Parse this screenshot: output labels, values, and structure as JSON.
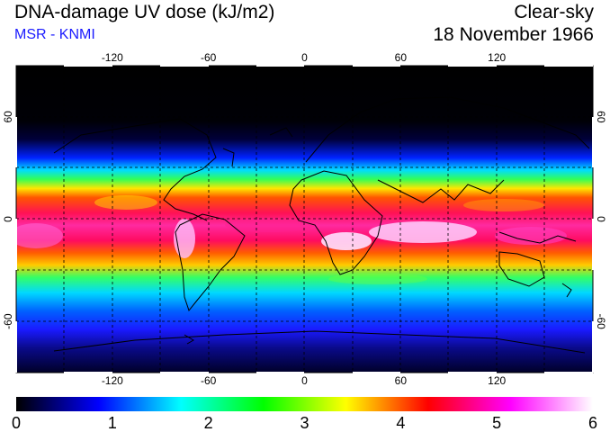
{
  "header": {
    "title": "DNA-damage UV dose (kJ/m2)",
    "source": "MSR - KNMI",
    "condition": "Clear-sky",
    "date": "18 November 1966"
  },
  "map": {
    "lon_ticks": [
      "-120",
      "-60",
      "0",
      "60",
      "120"
    ],
    "lat_ticks": [
      "60",
      "0",
      "-60"
    ],
    "lon_values": [
      -120,
      -60,
      0,
      60,
      120
    ],
    "lat_values": [
      60,
      0,
      -60
    ],
    "lon_range": [
      -180,
      180
    ],
    "lat_range": [
      -90,
      90
    ],
    "grid": true
  },
  "colorbar": {
    "min": 0,
    "max": 6,
    "labels": [
      "0",
      "1",
      "2",
      "3",
      "4",
      "5",
      "6"
    ],
    "stops": [
      "#000000",
      "#0000ff",
      "#00ffff",
      "#00ff00",
      "#ffff00",
      "#ff0000",
      "#ff00ff",
      "#ffffff"
    ]
  }
}
